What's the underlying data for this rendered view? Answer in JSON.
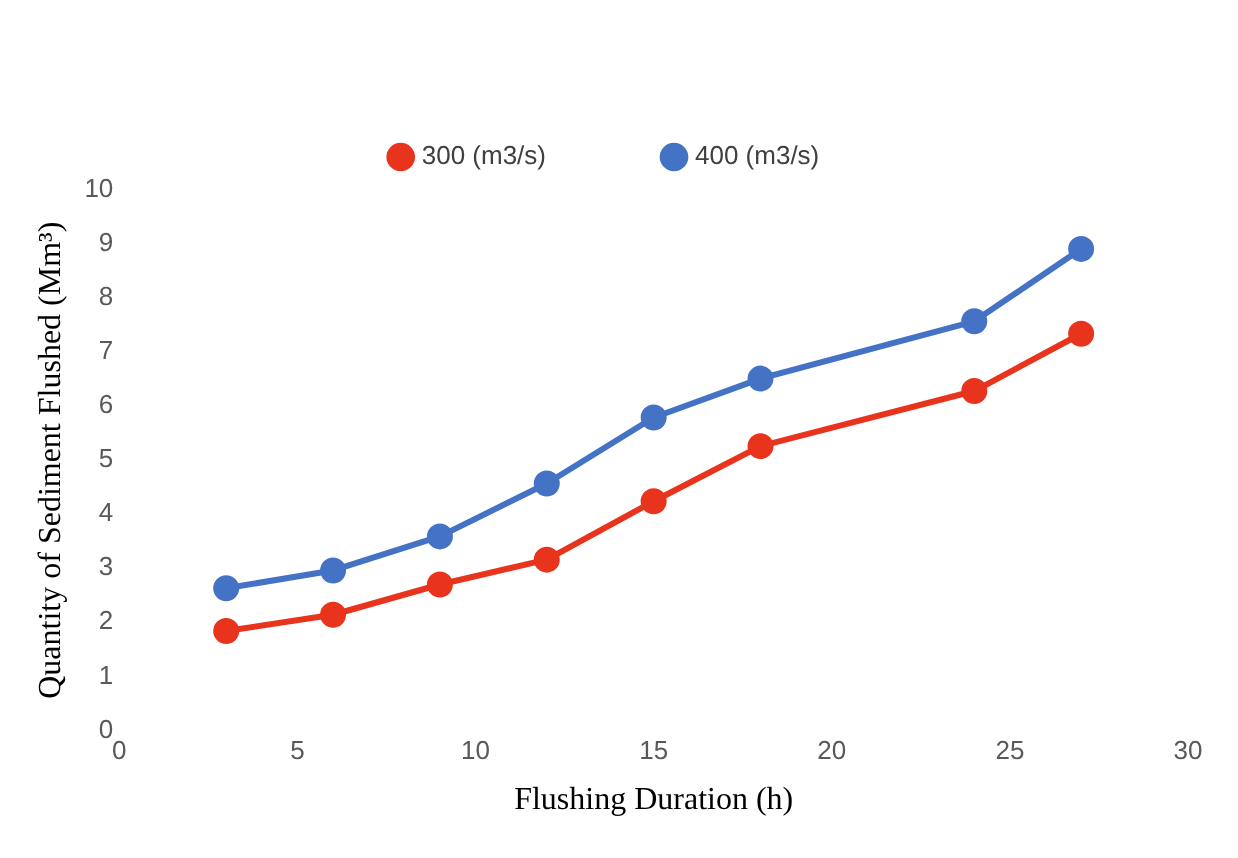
{
  "chart_data": {
    "type": "line",
    "xlabel": "Flushing Duration (h)",
    "ylabel": "Quantity of Sediment Flushed (Mm³)",
    "x": [
      3,
      6,
      9,
      12,
      15,
      18,
      24,
      27
    ],
    "series": [
      {
        "name": "300 (m3/s)",
        "color": "#e8341c",
        "values": [
          1.84,
          2.14,
          2.7,
          3.16,
          4.24,
          5.26,
          6.28,
          7.34
        ]
      },
      {
        "name": "400 (m3/s)",
        "color": "#4472c4",
        "values": [
          2.63,
          2.96,
          3.59,
          4.57,
          5.79,
          6.51,
          7.57,
          8.91
        ]
      }
    ],
    "xlim": [
      0,
      30
    ],
    "xticks": [
      0,
      5,
      10,
      15,
      20,
      25,
      30
    ],
    "ylim": [
      0,
      10
    ],
    "yticks": [
      0,
      1,
      2,
      3,
      4,
      5,
      6,
      7,
      8,
      9,
      10
    ],
    "grid": false,
    "legend": "top",
    "marker": "circle",
    "line_style": "solid"
  }
}
